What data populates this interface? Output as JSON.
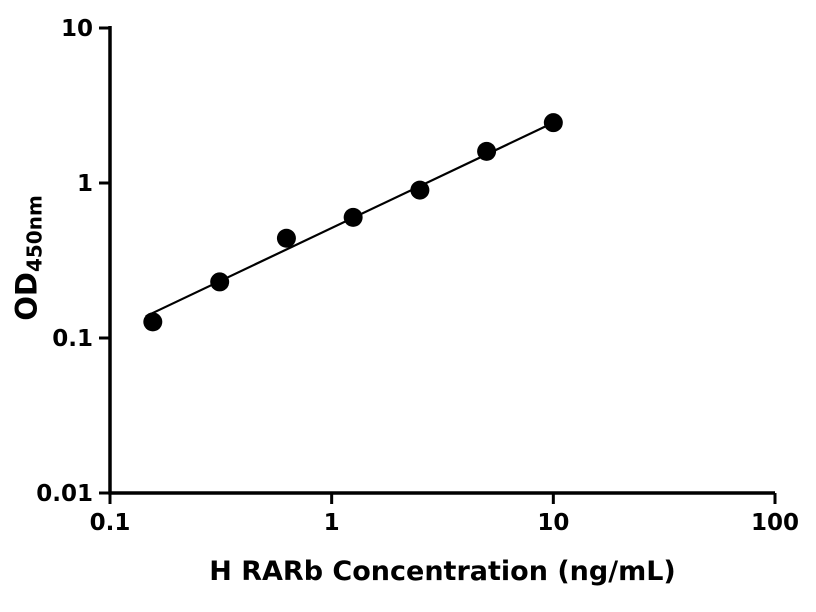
{
  "chart_data": {
    "type": "scatter",
    "title": "",
    "xlabel": "H RARb Concentration (ng/mL)",
    "ylabel_main": "OD",
    "ylabel_sub": "450nm",
    "xscale": "log",
    "yscale": "log",
    "xlim": [
      0.1,
      100
    ],
    "ylim": [
      0.01,
      10
    ],
    "xticks": [
      0.1,
      1,
      10,
      100
    ],
    "xtick_labels": [
      "0.1",
      "1",
      "10",
      "100"
    ],
    "yticks": [
      0.01,
      0.1,
      1,
      10
    ],
    "ytick_labels": [
      "0.01",
      "0.1",
      "1",
      "10"
    ],
    "grid": false,
    "legend": false,
    "x": [
      0.156,
      0.3125,
      0.625,
      1.25,
      2.5,
      5,
      10
    ],
    "y": [
      0.127,
      0.23,
      0.44,
      0.6,
      0.9,
      1.6,
      2.45
    ],
    "trendline": {
      "x1": 0.145,
      "y1": 0.138,
      "x2": 10.0,
      "y2": 2.45
    },
    "marker_color": "#000000",
    "line_color": "#000000",
    "axis_color": "#000000",
    "background_color": "#ffffff"
  }
}
